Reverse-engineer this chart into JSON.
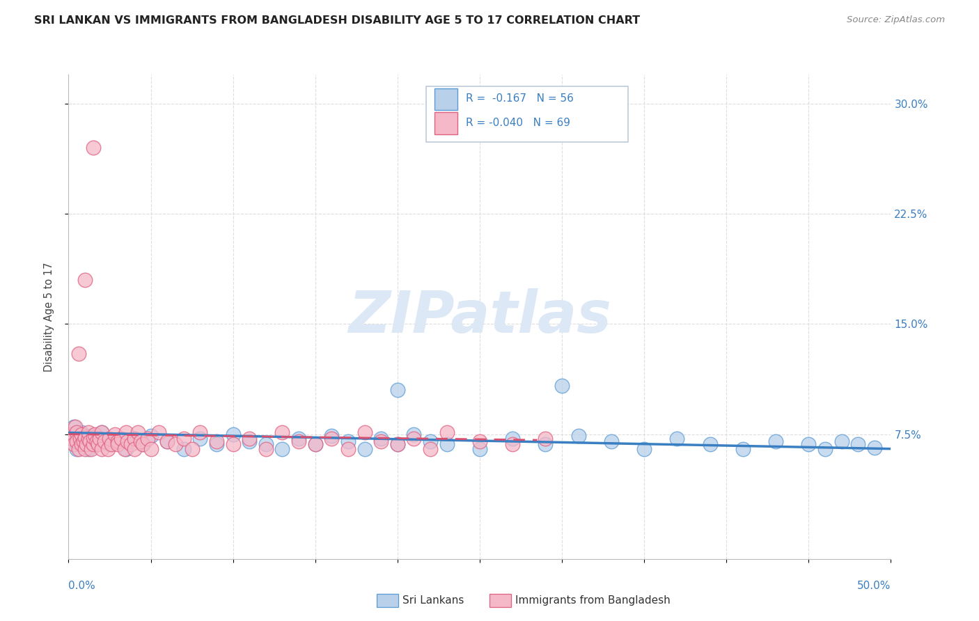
{
  "title": "SRI LANKAN VS IMMIGRANTS FROM BANGLADESH DISABILITY AGE 5 TO 17 CORRELATION CHART",
  "source": "Source: ZipAtlas.com",
  "ylabel": "Disability Age 5 to 17",
  "yticks": [
    "7.5%",
    "15.0%",
    "22.5%",
    "30.0%"
  ],
  "ytick_vals": [
    0.075,
    0.15,
    0.225,
    0.3
  ],
  "xlim": [
    0.0,
    0.5
  ],
  "ylim": [
    -0.01,
    0.32
  ],
  "legend_r_blue": "R =  -0.167",
  "legend_n_blue": "N = 56",
  "legend_r_pink": "R = -0.040",
  "legend_n_pink": "N = 69",
  "blue_fill": "#b8d0ea",
  "blue_edge": "#5b9bd5",
  "pink_fill": "#f4b8c8",
  "pink_edge": "#e06080",
  "trendline_blue": "#3a7fc1",
  "trendline_pink": "#d94f6e",
  "watermark_color": "#dce8f5",
  "bg_color": "#ffffff",
  "title_color": "#222222",
  "source_color": "#888888",
  "axis_label_color": "#444444",
  "tick_label_color": "#3a7fc1",
  "grid_color": "#dddddd"
}
